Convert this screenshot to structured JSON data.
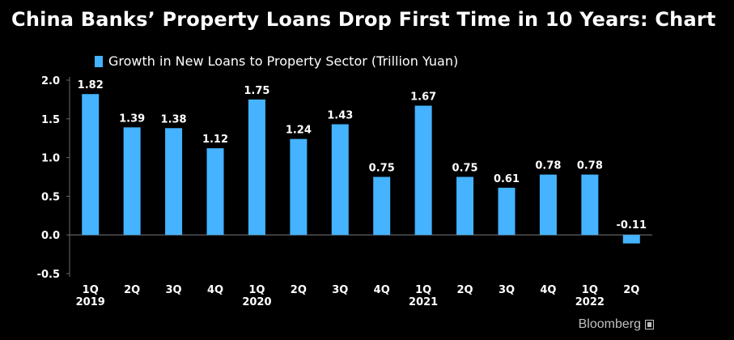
{
  "header": {
    "title": "China Banks’ Property Loans Drop First Time in 10 Years: Chart"
  },
  "colors": {
    "background": "#000000",
    "bar": "#45b3ff",
    "text": "#ffffff",
    "axis": "#6a6a6a"
  },
  "brand": {
    "name": "Bloomberg"
  },
  "chart_data": {
    "type": "bar",
    "title": "China Banks’ Property Loans Drop First Time in 10 Years: Chart",
    "categories": [
      "1Q 2019",
      "2Q",
      "3Q",
      "4Q",
      "1Q 2020",
      "2Q",
      "3Q",
      "4Q",
      "1Q 2021",
      "2Q",
      "3Q",
      "4Q",
      "1Q 2022",
      "2Q"
    ],
    "category_lines": [
      [
        "1Q",
        "2019"
      ],
      [
        "2Q"
      ],
      [
        "3Q"
      ],
      [
        "4Q"
      ],
      [
        "1Q",
        "2020"
      ],
      [
        "2Q"
      ],
      [
        "3Q"
      ],
      [
        "4Q"
      ],
      [
        "1Q",
        "2021"
      ],
      [
        "2Q"
      ],
      [
        "3Q"
      ],
      [
        "4Q"
      ],
      [
        "1Q",
        "2022"
      ],
      [
        "2Q"
      ]
    ],
    "series": [
      {
        "name": "Growth in New Loans to Property Sector (Trillion Yuan)",
        "values": [
          1.82,
          1.39,
          1.38,
          1.12,
          1.75,
          1.24,
          1.43,
          0.75,
          1.67,
          0.75,
          0.61,
          0.78,
          0.78,
          -0.11
        ],
        "labels": [
          "1.82",
          "1.39",
          "1.38",
          "1.12",
          "1.75",
          "1.24",
          "1.43",
          "0.75",
          "1.67",
          "0.75",
          "0.61",
          "0.78",
          "0.78",
          "-0.11"
        ]
      }
    ],
    "y_ticks": [
      2.0,
      1.5,
      1.0,
      0.5,
      0.0,
      -0.5
    ],
    "y_tick_labels": [
      "2.0",
      "1.5",
      "1.0",
      "0.5",
      "0.0",
      "-0.5"
    ],
    "ylim": [
      -0.5,
      2.0
    ],
    "legend": "top-left",
    "grid": false,
    "xlabel": "",
    "ylabel": ""
  }
}
